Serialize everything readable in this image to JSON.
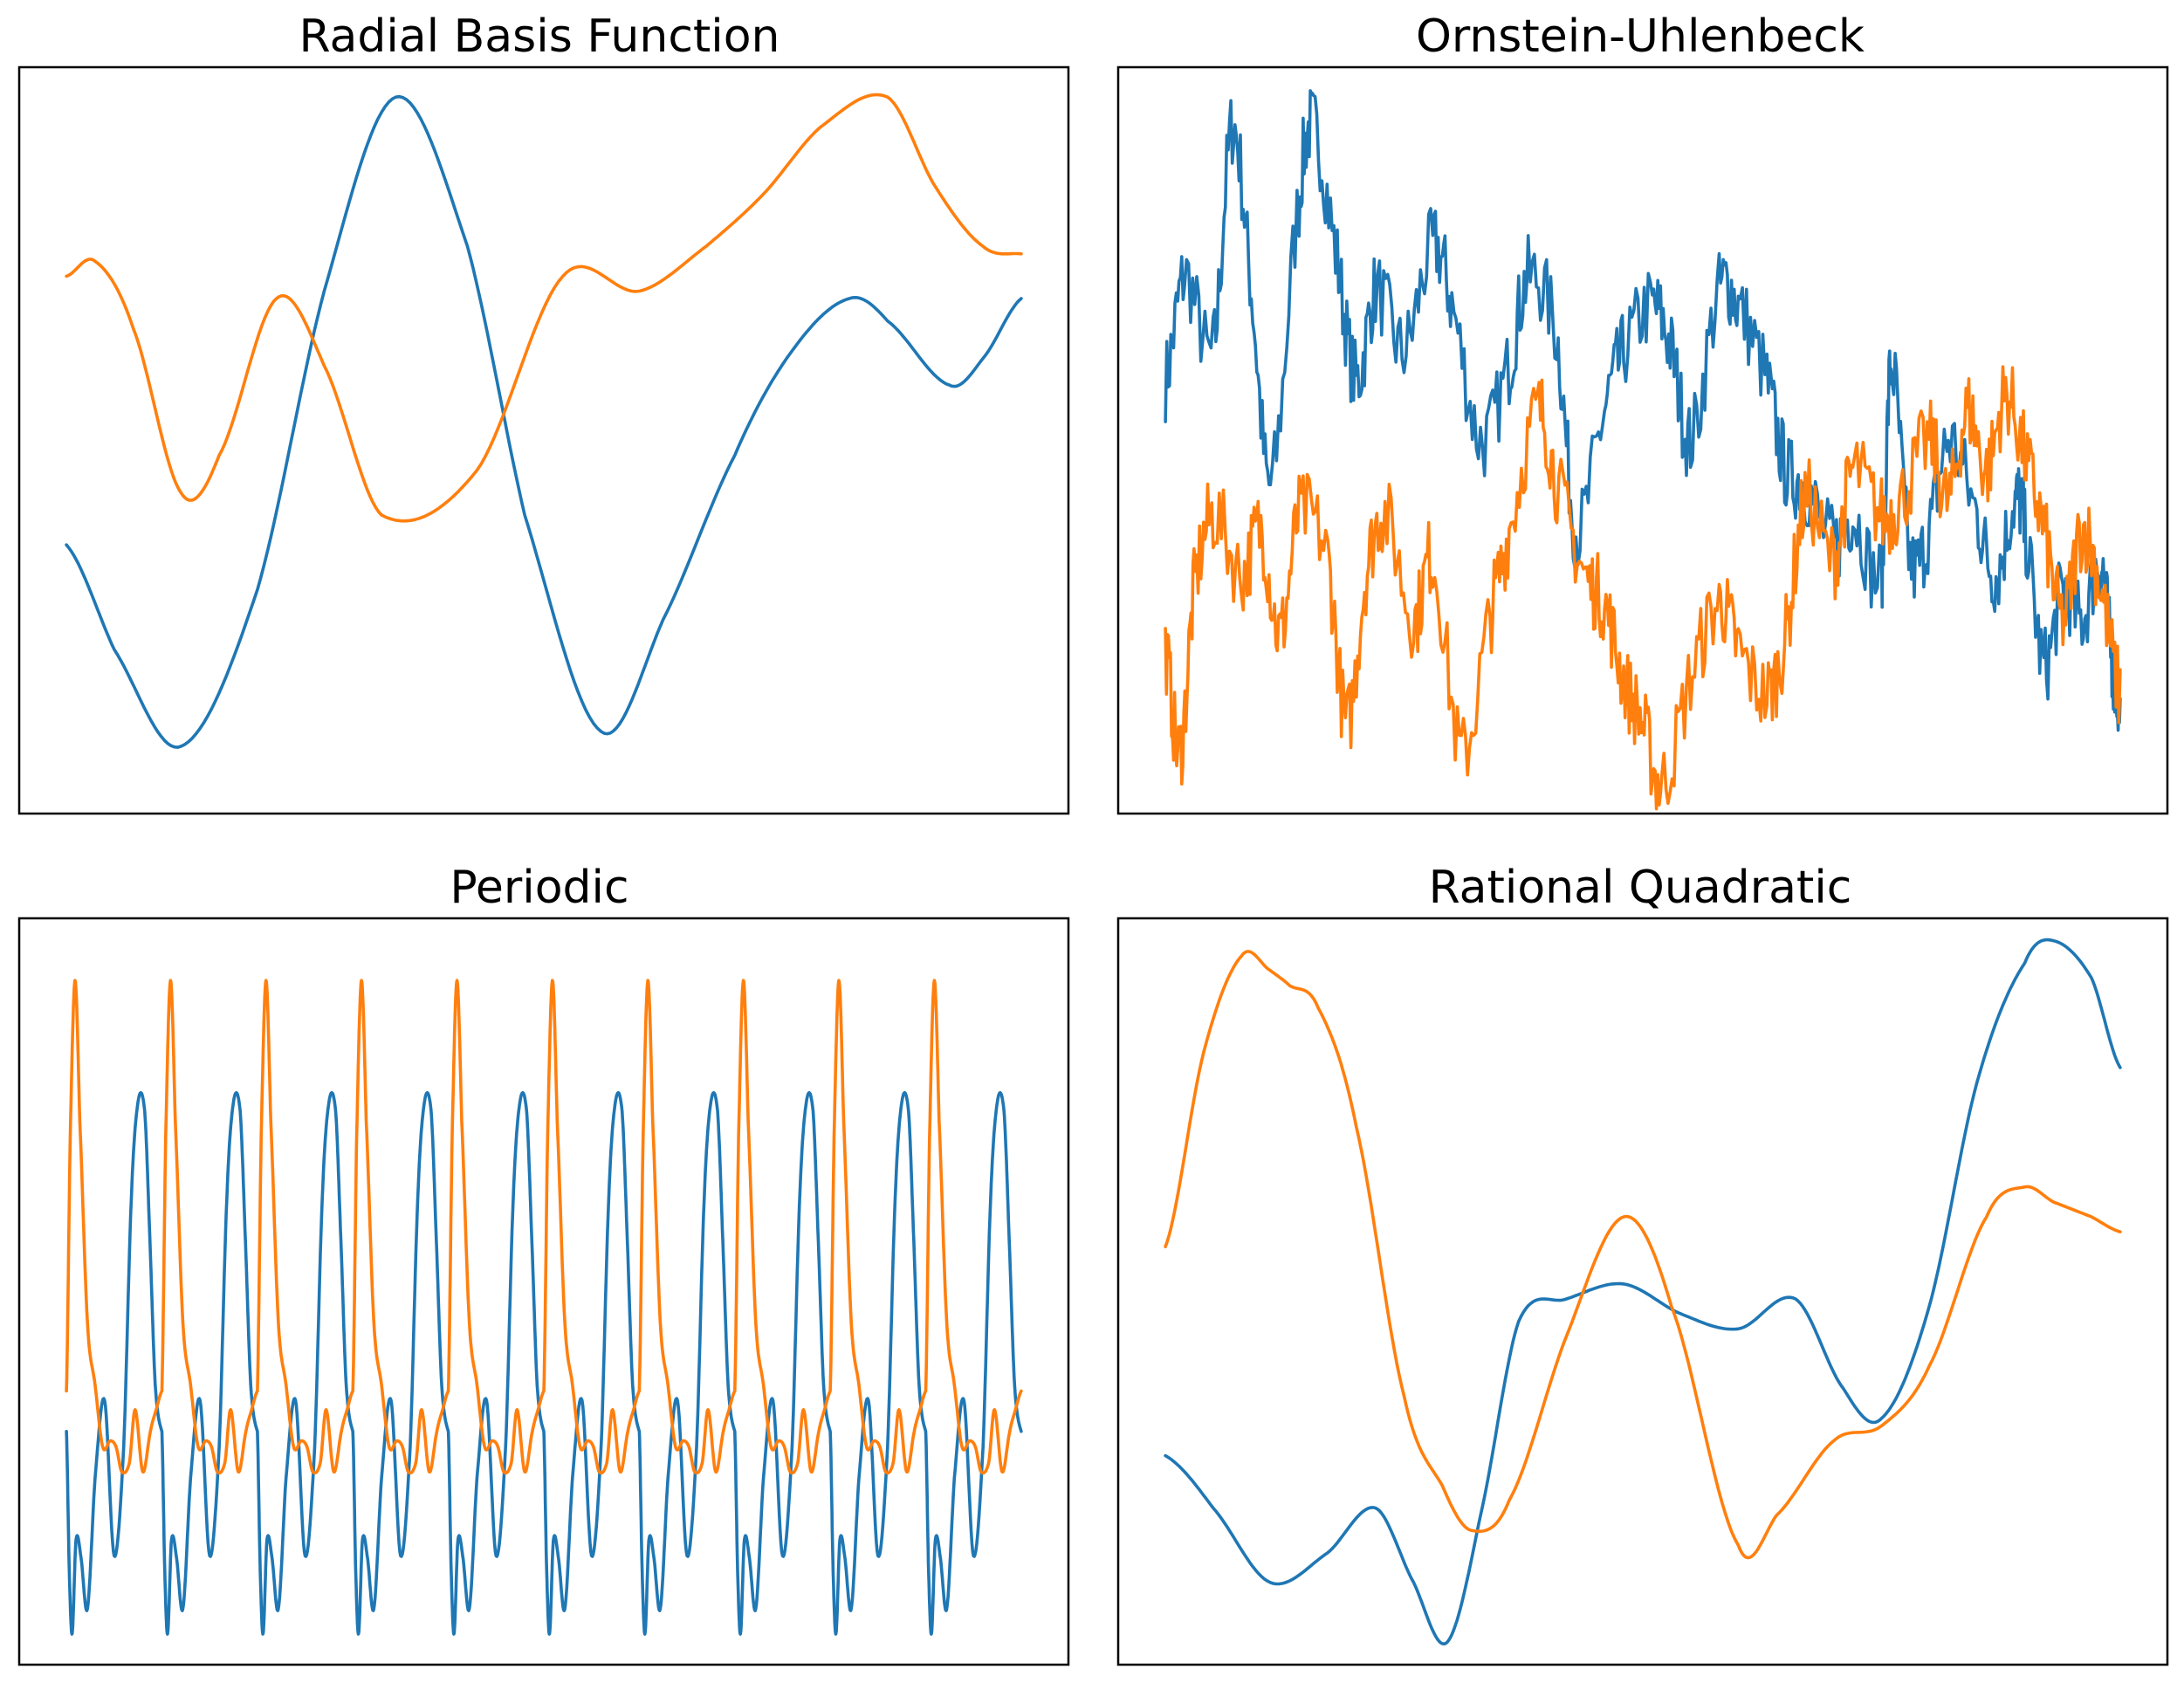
{
  "colors": {
    "series1": "#1f77b4",
    "series2": "#ff7f0e",
    "frame": "#000000",
    "background": "#ffffff"
  },
  "chart_data": [
    {
      "type": "line",
      "title": "Radial Basis Function",
      "xlabel": "",
      "ylabel": "",
      "xticks": "hidden",
      "yticks": "hidden",
      "grid": false,
      "legend": "none",
      "x_range": [
        0,
        1
      ],
      "ylim": [
        -2.5,
        2.5
      ],
      "series": [
        {
          "x": [
            0,
            0.05,
            0.12,
            0.2,
            0.27,
            0.345,
            0.42,
            0.48,
            0.56,
            0.625,
            0.7,
            0.76,
            0.82,
            0.86,
            0.925,
            0.96,
            1.0
          ],
          "y": [
            -0.7,
            -1.4,
            -2.05,
            -1.0,
            1.0,
            2.3,
            1.3,
            -0.5,
            -1.95,
            -1.2,
            -0.1,
            0.6,
            0.95,
            0.8,
            0.37,
            0.55,
            0.95
          ]
        },
        {
          "x": [
            0,
            0.03,
            0.07,
            0.12,
            0.16,
            0.22,
            0.27,
            0.33,
            0.43,
            0.52,
            0.6,
            0.67,
            0.73,
            0.79,
            0.86,
            0.91,
            0.96,
            1.0
          ],
          "y": [
            1.1,
            1.2,
            0.75,
            -0.35,
            -0.1,
            0.95,
            0.5,
            -0.5,
            -0.2,
            1.1,
            1.0,
            1.3,
            1.65,
            2.1,
            2.3,
            1.7,
            1.3,
            1.25
          ]
        }
      ]
    },
    {
      "type": "line",
      "title": "Ornstein-Uhlenbeck",
      "xlabel": "",
      "ylabel": "",
      "xticks": "hidden",
      "yticks": "hidden",
      "grid": false,
      "legend": "none",
      "x_range": [
        0,
        1
      ],
      "ylim": [
        -2.6,
        2.4
      ],
      "series": [
        {
          "x": [
            0,
            0.02,
            0.05,
            0.07,
            0.09,
            0.11,
            0.14,
            0.155,
            0.18,
            0.2,
            0.22,
            0.25,
            0.28,
            0.3,
            0.33,
            0.36,
            0.38,
            0.41,
            0.43,
            0.46,
            0.48,
            0.51,
            0.53,
            0.55,
            0.58,
            0.6,
            0.63,
            0.65,
            0.67,
            0.7,
            0.72,
            0.75,
            0.76,
            0.78,
            0.8,
            0.82,
            0.85,
            0.87,
            0.89,
            0.9,
            0.92,
            0.94,
            0.96,
            0.98,
            0.99,
            1.0
          ],
          "y": [
            0.3,
            1.0,
            0.5,
            2.0,
            0.9,
            -0.4,
            1.5,
            2.0,
            1.1,
            0.3,
            0.9,
            0.5,
            1.2,
            0.8,
            -0.1,
            0.4,
            1.0,
            0.6,
            -0.7,
            0.1,
            0.5,
            0.8,
            0.5,
            -0.1,
            0.9,
            0.8,
            0.3,
            -0.3,
            -0.4,
            -0.8,
            -0.6,
            -1.0,
            0.4,
            -0.9,
            -0.7,
            -0.1,
            -0.6,
            -1.0,
            -0.5,
            -0.7,
            -1.6,
            -1.1,
            -1.3,
            -0.9,
            -1.5,
            -1.9
          ]
        },
        {
          "x": [
            0,
            0.015,
            0.03,
            0.05,
            0.08,
            0.1,
            0.12,
            0.14,
            0.17,
            0.19,
            0.21,
            0.23,
            0.26,
            0.28,
            0.31,
            0.34,
            0.36,
            0.39,
            0.41,
            0.44,
            0.46,
            0.48,
            0.5,
            0.52,
            0.55,
            0.58,
            0.6,
            0.63,
            0.65,
            0.67,
            0.7,
            0.72,
            0.75,
            0.77,
            0.8,
            0.82,
            0.84,
            0.86,
            0.88,
            0.9,
            0.92,
            0.94,
            0.96,
            0.98,
            1.0
          ],
          "y": [
            -1.5,
            -2.2,
            -1.1,
            -0.6,
            -1.0,
            -0.7,
            -1.4,
            -0.6,
            -0.9,
            -2.0,
            -1.0,
            -0.6,
            -1.3,
            -0.9,
            -2.2,
            -1.3,
            -0.7,
            0.1,
            -0.4,
            -1.0,
            -1.2,
            -1.7,
            -2.0,
            -2.4,
            -1.7,
            -1.2,
            -1.5,
            -1.8,
            -1.4,
            -0.5,
            -0.9,
            -0.3,
            -0.6,
            -0.5,
            -0.1,
            -0.5,
            0.1,
            -0.3,
            0.2,
            -0.2,
            -0.7,
            -1.3,
            -0.7,
            -1.1,
            -1.8
          ]
        }
      ]
    },
    {
      "type": "line",
      "title": "Periodic",
      "xlabel": "",
      "ylabel": "",
      "xticks": "hidden",
      "yticks": "hidden",
      "grid": false,
      "legend": "none",
      "x_range": [
        0,
        1
      ],
      "ylim": [
        -1.2,
        1.2
      ],
      "period": 0.1,
      "series": [
        {
          "x": [
            0,
            0.1,
            0.2,
            0.3,
            0.4,
            0.5,
            0.6,
            0.7,
            0.8,
            0.9,
            1.0
          ],
          "y": [
            -0.45,
            -0.45,
            -0.45,
            -0.45,
            -0.45,
            -0.45,
            -0.45,
            -0.45,
            -0.45,
            -0.45,
            -0.45
          ],
          "cycle_phase": [
            0,
            0.03,
            0.06,
            0.1,
            0.15,
            0.22,
            0.3,
            0.4,
            0.5,
            0.6,
            0.68,
            0.75,
            0.82,
            0.87,
            0.93,
            1.0
          ],
          "cycle_values": [
            -0.45,
            -0.9,
            -1.1,
            -0.8,
            -0.85,
            -1.02,
            -0.6,
            -0.35,
            -0.85,
            -0.5,
            0.3,
            0.61,
            0.58,
            0.2,
            -0.3,
            -0.45
          ]
        },
        {
          "x": [
            0,
            0.1,
            0.2,
            0.3,
            0.4,
            0.5,
            0.6,
            0.7,
            0.8,
            0.9,
            1.0
          ],
          "y": [
            -0.32,
            -0.32,
            -0.32,
            -0.32,
            -0.32,
            -0.32,
            -0.32,
            -0.32,
            -0.32,
            -0.32,
            -0.32
          ],
          "cycle_phase": [
            0,
            0.04,
            0.09,
            0.14,
            0.22,
            0.3,
            0.38,
            0.46,
            0.52,
            0.58,
            0.66,
            0.72,
            0.8,
            0.88,
            0.94,
            1.0
          ],
          "cycle_values": [
            -0.32,
            0.5,
            1.0,
            0.55,
            -0.1,
            -0.3,
            -0.5,
            -0.48,
            -0.5,
            -0.58,
            -0.55,
            -0.38,
            -0.58,
            -0.45,
            -0.38,
            -0.32
          ]
        }
      ]
    },
    {
      "type": "line",
      "title": "Rational Quadratic",
      "xlabel": "",
      "ylabel": "",
      "xticks": "hidden",
      "yticks": "hidden",
      "grid": false,
      "legend": "none",
      "x_range": [
        0,
        1
      ],
      "ylim": [
        -2.6,
        2.4
      ],
      "series": [
        {
          "x": [
            0,
            0.05,
            0.11,
            0.17,
            0.22,
            0.26,
            0.295,
            0.33,
            0.37,
            0.42,
            0.48,
            0.54,
            0.6,
            0.66,
            0.71,
            0.75,
            0.8,
            0.85,
            0.9,
            0.93,
            0.97,
            1.0
          ],
          "y": [
            -1.2,
            -1.55,
            -2.05,
            -1.85,
            -1.55,
            -2.05,
            -2.45,
            -1.6,
            -0.3,
            -0.15,
            -0.05,
            -0.25,
            -0.35,
            -0.15,
            -0.75,
            -0.95,
            -0.2,
            1.3,
            2.1,
            2.25,
            2.0,
            1.4
          ]
        },
        {
          "x": [
            0,
            0.04,
            0.08,
            0.11,
            0.13,
            0.16,
            0.2,
            0.25,
            0.29,
            0.32,
            0.36,
            0.42,
            0.48,
            0.53,
            0.6,
            0.64,
            0.7,
            0.75,
            0.8,
            0.86,
            0.9,
            0.93,
            0.97,
            1.0
          ],
          "y": [
            0.2,
            1.5,
            2.15,
            2.05,
            1.95,
            1.8,
            1.0,
            -0.8,
            -1.4,
            -1.7,
            -1.5,
            -0.4,
            0.4,
            -0.2,
            -1.8,
            -1.6,
            -1.1,
            -1.0,
            -0.6,
            0.4,
            0.6,
            0.5,
            0.4,
            0.3
          ]
        }
      ]
    }
  ]
}
